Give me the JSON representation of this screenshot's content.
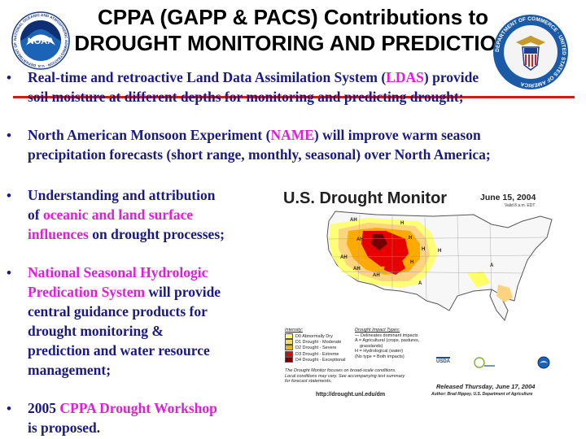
{
  "title": {
    "line1": "CPPA (GAPP & PACS) Contributions to",
    "line2": "DROUGHT MONITORING AND PREDICTION"
  },
  "logos": {
    "noaa_text": "NOAA",
    "noaa_ring": "NATIONAL OCEANIC AND ATMOSPHERIC ADMINISTRATION · U.S. DEPARTMENT OF COMMERCE",
    "commerce_ring": "DEPARTMENT OF COMMERCE · UNITED STATES OF AMERICA"
  },
  "bullets": [
    {
      "lines": [
        [
          "Real-time and retroactive Land Data Assimilation System (",
          {
            "hl": "LDAS"
          },
          ") provide"
        ],
        [
          "soil moisture at different depths for monitoring and predicting drought;"
        ]
      ]
    },
    {
      "lines": [
        [
          "North American Monsoon Experiment (",
          {
            "hl": "NAME"
          },
          ") will improve warm season"
        ],
        [
          "precipitation forecasts (short range, monthly, seasonal) over North America;"
        ]
      ]
    },
    {
      "lines": [
        [
          "Understanding and attribution"
        ],
        [
          "of ",
          {
            "hl": "oceanic and land surface"
          }
        ],
        [
          {
            "hl": "influences"
          },
          " on drought processes;"
        ]
      ]
    },
    {
      "lines": [
        [
          {
            "hl": "National Seasonal Hydrologic"
          }
        ],
        [
          " ",
          {
            "hl": "Predication System"
          },
          " will provide"
        ],
        [
          "central guidance products for"
        ],
        [
          "drought monitoring &"
        ],
        [
          "prediction and water resource"
        ],
        [
          "management;"
        ]
      ]
    },
    {
      "lines": [
        [
          "2005 ",
          {
            "hl": "CPPA Drought Workshop"
          }
        ],
        [
          "is proposed."
        ]
      ]
    }
  ],
  "map": {
    "title": "U.S. Drought Monitor",
    "date": "June 15, 2004",
    "valid": "Valid 8 a.m. EDT",
    "intensity_label": "Intensity:",
    "intensity": [
      {
        "label": "D0 Abnormally Dry",
        "color": "#ffff66"
      },
      {
        "label": "D1 Drought - Moderate",
        "color": "#fcd37f"
      },
      {
        "label": "D2 Drought - Severe",
        "color": "#ffaa00"
      },
      {
        "label": "D3 Drought - Extreme",
        "color": "#e60000"
      },
      {
        "label": "D4 Drought - Exceptional",
        "color": "#730000"
      }
    ],
    "impact_label": "Drought Impact Types:",
    "impacts": [
      "Delineates dominant impacts",
      "A = Agricultural (crops, pastures,",
      "grasslands)",
      "H = Hydrological (water)",
      "(No type = Both impacts)"
    ],
    "note": [
      "The Drought Monitor focuses on broad-scale conditions.",
      "Local conditions may vary.  See accompanying text summary",
      "for forecast statements."
    ],
    "url": "http://drought.unl.edu/dm",
    "released": "Released Thursday, June 17, 2004",
    "author": "Author: Brad Rippey, U.S. Department of Agriculture",
    "usda": "USDA",
    "map_labels": [
      "AH",
      "AH",
      "H",
      "H",
      "H",
      "H",
      "H",
      "AH",
      "AH",
      "AH",
      "A",
      "A"
    ]
  },
  "colors": {
    "bullet_text": "#1a1a80",
    "highlight": "#e01ed8",
    "rule": "#d11a1a"
  }
}
